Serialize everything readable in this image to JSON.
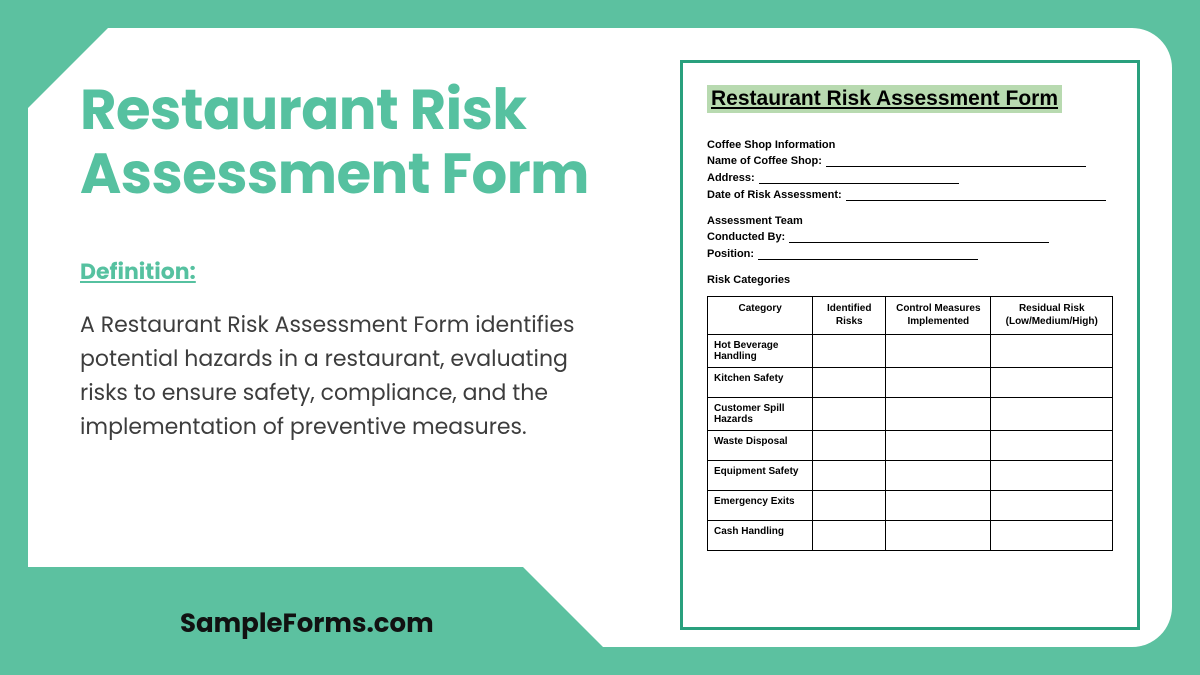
{
  "colors": {
    "background": "#5cc1a0",
    "panel": "#ffffff",
    "title": "#56c1a0",
    "defLabel": "#56c1a0",
    "bodyText": "#3d3d3d",
    "formBorder": "#29a07d",
    "formTitleBg": "#b8dab0",
    "tableBorder": "#000000"
  },
  "left": {
    "title": "Restaurant Risk Assessment Form",
    "defLabel": "Definition:",
    "defBody": "A Restaurant Risk Assessment Form identifies potential hazards in a restaurant, evaluating risks to ensure safety, compliance, and the implementation of preventive measures.",
    "brand": "SampleForms.com"
  },
  "form": {
    "title": "Restaurant Risk Assessment Form",
    "section1": "Coffee Shop Information",
    "fields1": [
      "Name of Coffee Shop:",
      "Address:",
      "Date of Risk Assessment:"
    ],
    "section2": "Assessment Team",
    "fields2": [
      "Conducted By:",
      "Position:"
    ],
    "section3": "Risk Categories",
    "columns": [
      "Category",
      "Identified Risks",
      "Control Measures Implemented",
      "Residual Risk (Low/Medium/High)"
    ],
    "rows": [
      "Hot Beverage Handling",
      "Kitchen Safety",
      "Customer Spill Hazards",
      "Waste Disposal",
      "Equipment Safety",
      "Emergency Exits",
      "Cash Handling"
    ]
  }
}
